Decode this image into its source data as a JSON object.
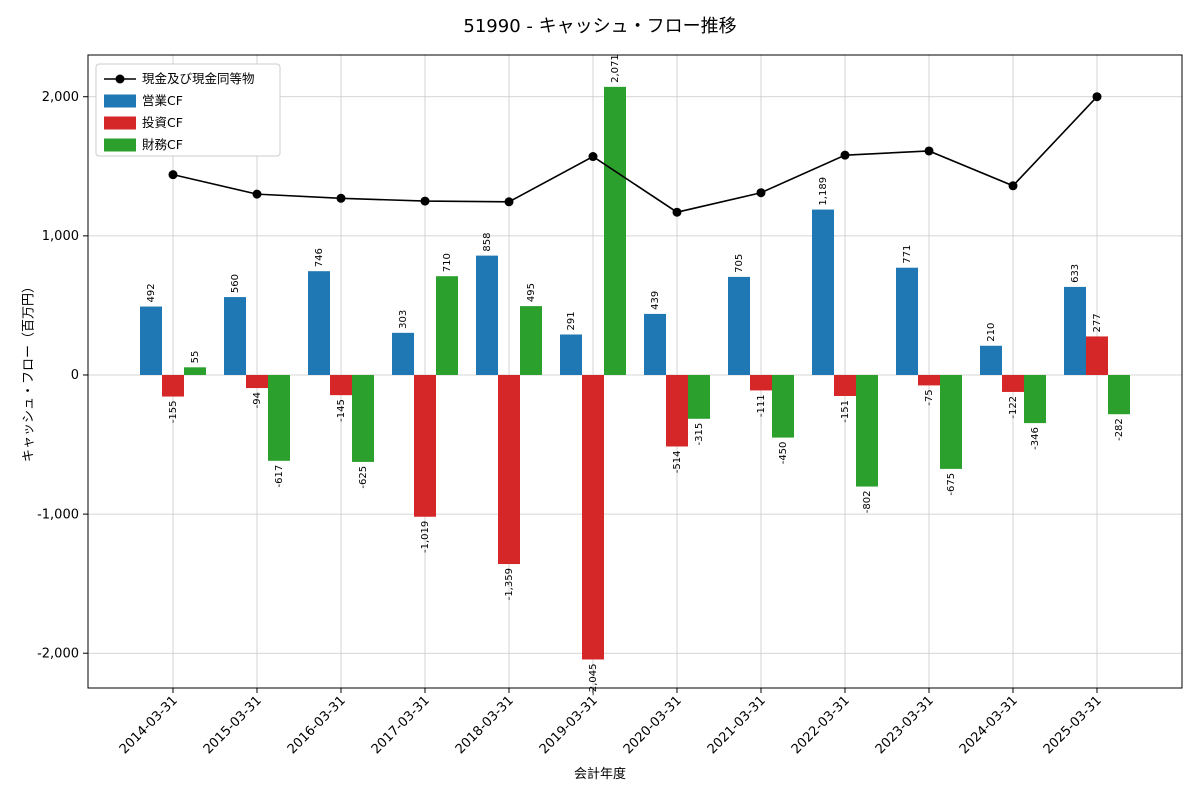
{
  "page": {
    "background": "#ffffff"
  },
  "chart_data": {
    "type": "bar",
    "title": "51990 - キャッシュ・フロー推移",
    "xlabel": "会計年度",
    "ylabel": "キャッシュ・フロー（百万円）",
    "ylim": [
      -2250,
      2300
    ],
    "yticks": [
      -2000,
      -1000,
      0,
      1000,
      2000
    ],
    "grid": true,
    "legend_position": "upper left",
    "colors": {
      "line": "#000000",
      "operating": "#1f77b4",
      "investing": "#d62728",
      "financing": "#2ca02c",
      "grid": "#c8c8c8",
      "spine": "#000000"
    },
    "categories": [
      "2014-03-31",
      "2015-03-31",
      "2016-03-31",
      "2017-03-31",
      "2018-03-31",
      "2019-03-31",
      "2020-03-31",
      "2021-03-31",
      "2022-03-31",
      "2023-03-31",
      "2024-03-31",
      "2025-03-31"
    ],
    "series": [
      {
        "name": "現金及び現金同等物",
        "type": "line",
        "color": "#000000",
        "data_name": "cash-equivalents-line",
        "values": [
          1440,
          1300,
          1270,
          1250,
          1245,
          1570,
          1170,
          1310,
          1580,
          1610,
          1360,
          2000
        ]
      },
      {
        "name": "営業CF",
        "type": "bar",
        "color": "#1f77b4",
        "data_name": "operating-cf-bars",
        "values": [
          492,
          560,
          746,
          303,
          858,
          291,
          439,
          705,
          1189,
          771,
          210,
          633
        ]
      },
      {
        "name": "投資CF",
        "type": "bar",
        "color": "#d62728",
        "data_name": "investing-cf-bars",
        "values": [
          -155,
          -94,
          -145,
          -1019,
          -1359,
          -2045,
          -514,
          -111,
          -151,
          -75,
          -122,
          277
        ]
      },
      {
        "name": "財務CF",
        "type": "bar",
        "color": "#2ca02c",
        "data_name": "financing-cf-bars",
        "values": [
          55,
          -617,
          -625,
          710,
          495,
          2071,
          -315,
          -450,
          -802,
          -675,
          -346,
          -282
        ]
      }
    ]
  }
}
